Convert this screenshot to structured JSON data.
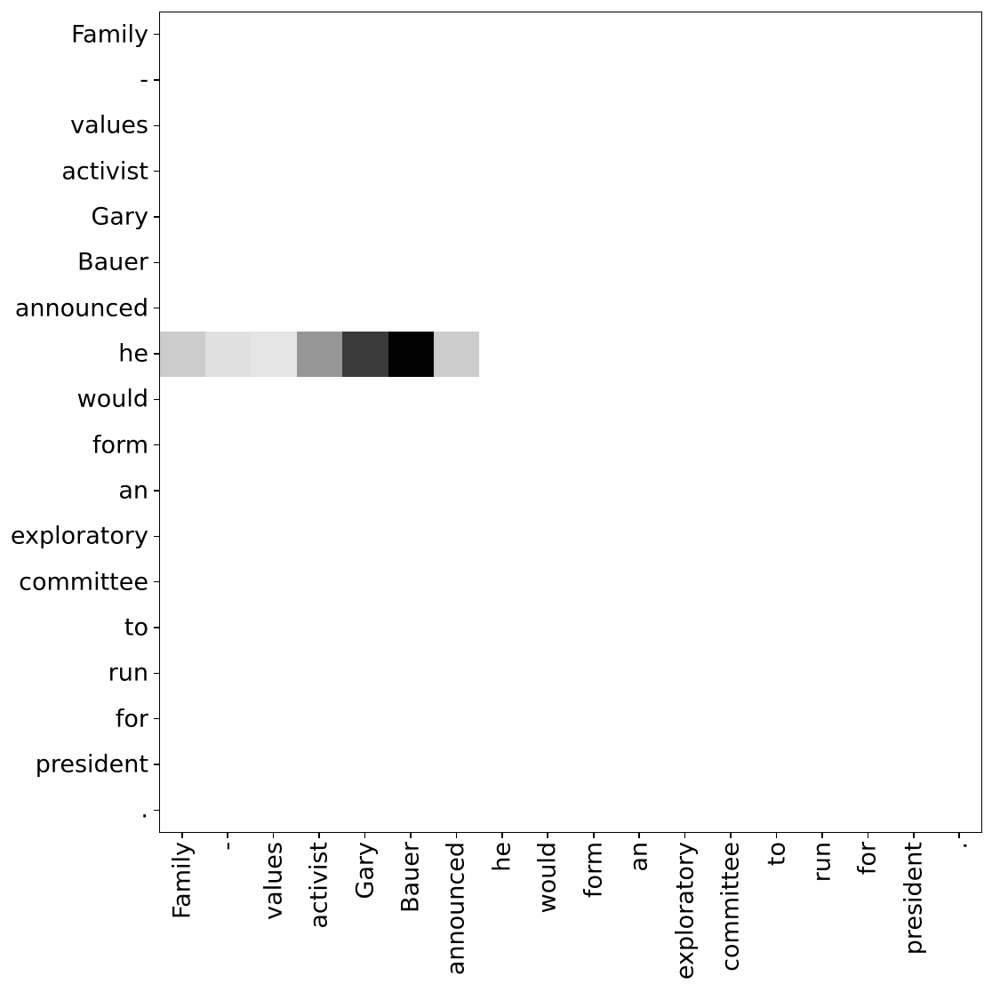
{
  "figure": {
    "background": "#ffffff",
    "spine_color": "#000000",
    "tick_color": "#000000",
    "label_color": "#000000"
  },
  "chart_data": {
    "type": "heatmap",
    "title": "",
    "x_labels": [
      "Family",
      "-",
      "values",
      "activist",
      "Gary",
      "Bauer",
      "announced",
      "he",
      "would",
      "form",
      "an",
      "exploratory",
      "committee",
      "to",
      "run",
      "for",
      "president",
      "."
    ],
    "y_labels": [
      "Family",
      "-",
      "values",
      "activist",
      "Gary",
      "Bauer",
      "announced",
      "he",
      "would",
      "form",
      "an",
      "exploratory",
      "committee",
      "to",
      "run",
      "for",
      "president",
      "."
    ],
    "colormap": {
      "name": "Greys",
      "zero_color": "#ffffff",
      "one_color": "#000000"
    },
    "value_range": [
      0,
      1
    ],
    "grid": "off",
    "legend": "none",
    "matrix": [
      [
        0,
        0,
        0,
        0,
        0,
        0,
        0,
        0,
        0,
        0,
        0,
        0,
        0,
        0,
        0,
        0,
        0,
        0
      ],
      [
        0,
        0,
        0,
        0,
        0,
        0,
        0,
        0,
        0,
        0,
        0,
        0,
        0,
        0,
        0,
        0,
        0,
        0
      ],
      [
        0,
        0,
        0,
        0,
        0,
        0,
        0,
        0,
        0,
        0,
        0,
        0,
        0,
        0,
        0,
        0,
        0,
        0
      ],
      [
        0,
        0,
        0,
        0,
        0,
        0,
        0,
        0,
        0,
        0,
        0,
        0,
        0,
        0,
        0,
        0,
        0,
        0
      ],
      [
        0,
        0,
        0,
        0,
        0,
        0,
        0,
        0,
        0,
        0,
        0,
        0,
        0,
        0,
        0,
        0,
        0,
        0
      ],
      [
        0,
        0,
        0,
        0,
        0,
        0,
        0,
        0,
        0,
        0,
        0,
        0,
        0,
        0,
        0,
        0,
        0,
        0
      ],
      [
        0,
        0,
        0,
        0,
        0,
        0,
        0,
        0,
        0,
        0,
        0,
        0,
        0,
        0,
        0,
        0,
        0,
        0
      ],
      [
        0.2,
        0.12,
        0.1,
        0.41,
        0.77,
        1.0,
        0.2,
        0,
        0,
        0,
        0,
        0,
        0,
        0,
        0,
        0,
        0,
        0
      ],
      [
        0,
        0,
        0,
        0,
        0,
        0,
        0,
        0,
        0,
        0,
        0,
        0,
        0,
        0,
        0,
        0,
        0,
        0
      ],
      [
        0,
        0,
        0,
        0,
        0,
        0,
        0,
        0,
        0,
        0,
        0,
        0,
        0,
        0,
        0,
        0,
        0,
        0
      ],
      [
        0,
        0,
        0,
        0,
        0,
        0,
        0,
        0,
        0,
        0,
        0,
        0,
        0,
        0,
        0,
        0,
        0,
        0
      ],
      [
        0,
        0,
        0,
        0,
        0,
        0,
        0,
        0,
        0,
        0,
        0,
        0,
        0,
        0,
        0,
        0,
        0,
        0
      ],
      [
        0,
        0,
        0,
        0,
        0,
        0,
        0,
        0,
        0,
        0,
        0,
        0,
        0,
        0,
        0,
        0,
        0,
        0
      ],
      [
        0,
        0,
        0,
        0,
        0,
        0,
        0,
        0,
        0,
        0,
        0,
        0,
        0,
        0,
        0,
        0,
        0,
        0
      ],
      [
        0,
        0,
        0,
        0,
        0,
        0,
        0,
        0,
        0,
        0,
        0,
        0,
        0,
        0,
        0,
        0,
        0,
        0
      ],
      [
        0,
        0,
        0,
        0,
        0,
        0,
        0,
        0,
        0,
        0,
        0,
        0,
        0,
        0,
        0,
        0,
        0,
        0
      ],
      [
        0,
        0,
        0,
        0,
        0,
        0,
        0,
        0,
        0,
        0,
        0,
        0,
        0,
        0,
        0,
        0,
        0,
        0
      ],
      [
        0,
        0,
        0,
        0,
        0,
        0,
        0,
        0,
        0,
        0,
        0,
        0,
        0,
        0,
        0,
        0,
        0,
        0
      ]
    ]
  }
}
